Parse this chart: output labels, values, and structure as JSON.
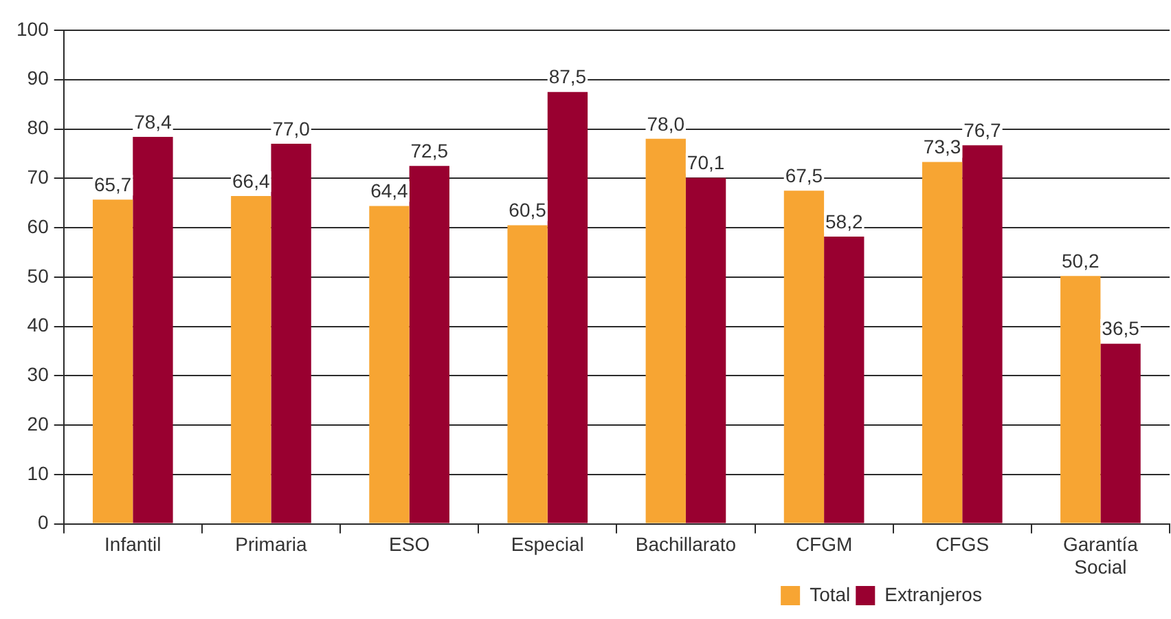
{
  "chart_data": {
    "type": "bar",
    "categories": [
      "Infantil",
      "Primaria",
      "ESO",
      "Especial",
      "Bachillarato",
      "CFGM",
      "CFGS",
      "Garantía Social"
    ],
    "series": [
      {
        "name": "Total",
        "color": "#f7a533",
        "values": [
          65.7,
          66.4,
          64.4,
          60.5,
          78.0,
          67.5,
          73.3,
          50.2
        ],
        "value_labels": [
          "65,7",
          "66,4",
          "64,4",
          "60,5",
          "78,0",
          "67,5",
          "73,3",
          "50,2"
        ]
      },
      {
        "name": "Extranjeros",
        "color": "#990030",
        "values": [
          78.4,
          77.0,
          72.5,
          87.5,
          70.1,
          58.2,
          76.7,
          36.5
        ],
        "value_labels": [
          "78,4",
          "77,0",
          "72,5",
          "87,5",
          "70,1",
          "58,2",
          "76,7",
          "36,5"
        ]
      }
    ],
    "ylim": [
      0,
      100
    ],
    "yticks": [
      0,
      10,
      20,
      30,
      40,
      50,
      60,
      70,
      80,
      90,
      100
    ],
    "grid": "y",
    "legend": "bottom"
  }
}
